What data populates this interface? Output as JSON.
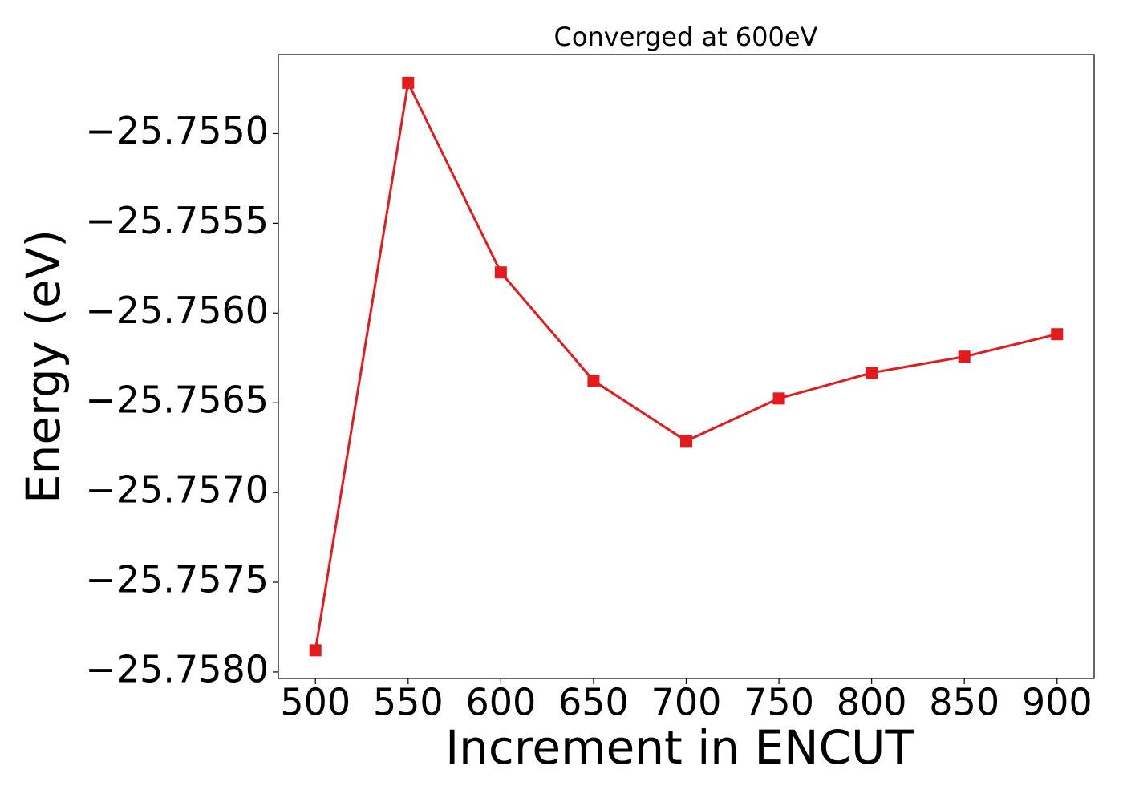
{
  "chart_data": {
    "type": "line",
    "title": "Converged at 600eV",
    "xlabel": "Increment in ENCUT",
    "ylabel": "Energy (eV)",
    "x": [
      500,
      550,
      600,
      650,
      700,
      750,
      800,
      850,
      900
    ],
    "series": [
      {
        "color": "#e41a1c",
        "values": [
          -25.757879,
          -25.754718,
          -25.755774,
          -25.756377,
          -25.756713,
          -25.756476,
          -25.756333,
          -25.756243,
          -25.756118
        ]
      }
    ],
    "xlim": [
      480,
      920
    ],
    "xticks": [
      500,
      550,
      600,
      650,
      700,
      750,
      800,
      850,
      900
    ],
    "ylim": [
      -25.758036,
      -25.75456
    ],
    "yticks": [
      {
        "value": -25.758,
        "label": "−25.7580"
      },
      {
        "value": -25.7575,
        "label": "−25.7575"
      },
      {
        "value": -25.757,
        "label": "−25.7570"
      },
      {
        "value": -25.7565,
        "label": "−25.7565"
      },
      {
        "value": -25.756,
        "label": "−25.7560"
      },
      {
        "value": -25.7555,
        "label": "−25.7555"
      },
      {
        "value": -25.755,
        "label": "−25.7550"
      }
    ],
    "grid": false,
    "marker": "square"
  }
}
